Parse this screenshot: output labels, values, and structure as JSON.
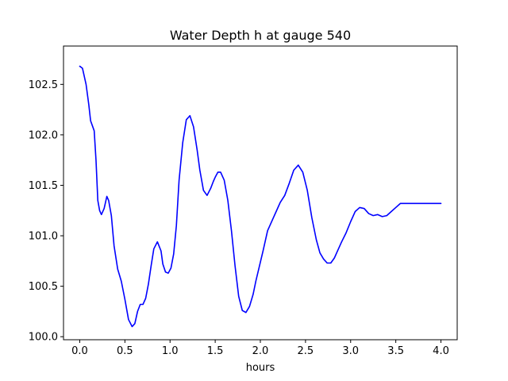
{
  "chart_data": {
    "type": "line",
    "title": "Water Depth h at gauge 540",
    "xlabel": "hours",
    "ylabel": "",
    "xlim": [
      -0.18,
      4.18
    ],
    "ylim": [
      99.97,
      102.88
    ],
    "xticks": [
      0.0,
      0.5,
      1.0,
      1.5,
      2.0,
      2.5,
      3.0,
      3.5,
      4.0
    ],
    "xtick_labels": [
      "0.0",
      "0.5",
      "1.0",
      "1.5",
      "2.0",
      "2.5",
      "3.0",
      "3.5",
      "4.0"
    ],
    "yticks": [
      100.0,
      100.5,
      101.0,
      101.5,
      102.0,
      102.5
    ],
    "ytick_labels": [
      "100.0",
      "100.5",
      "101.0",
      "101.5",
      "102.0",
      "102.5"
    ],
    "grid": false,
    "line_color": "#0000ff",
    "series": [
      {
        "name": "",
        "x": [
          0.0,
          0.03,
          0.07,
          0.1,
          0.12,
          0.14,
          0.16,
          0.18,
          0.2,
          0.22,
          0.24,
          0.27,
          0.3,
          0.32,
          0.35,
          0.38,
          0.42,
          0.46,
          0.5,
          0.54,
          0.58,
          0.61,
          0.64,
          0.67,
          0.7,
          0.73,
          0.76,
          0.79,
          0.82,
          0.86,
          0.9,
          0.92,
          0.95,
          0.98,
          1.01,
          1.04,
          1.07,
          1.1,
          1.14,
          1.18,
          1.22,
          1.26,
          1.3,
          1.33,
          1.37,
          1.41,
          1.45,
          1.48,
          1.5,
          1.53,
          1.56,
          1.6,
          1.64,
          1.68,
          1.72,
          1.76,
          1.8,
          1.84,
          1.88,
          1.92,
          1.95,
          1.99,
          2.03,
          2.08,
          2.13,
          2.18,
          2.22,
          2.27,
          2.32,
          2.37,
          2.42,
          2.47,
          2.52,
          2.57,
          2.62,
          2.66,
          2.7,
          2.74,
          2.78,
          2.82,
          2.86,
          2.9,
          2.95,
          3.0,
          3.05,
          3.1,
          3.15,
          3.2,
          3.25,
          3.3,
          3.35,
          3.4,
          3.45,
          3.5,
          3.55,
          3.6,
          3.65,
          3.7,
          3.75,
          3.8,
          3.85,
          3.9,
          3.95,
          4.0
        ],
        "values": [
          102.68,
          102.66,
          102.5,
          102.3,
          102.14,
          102.09,
          102.04,
          101.75,
          101.35,
          101.25,
          101.21,
          101.27,
          101.39,
          101.35,
          101.2,
          100.9,
          100.67,
          100.55,
          100.37,
          100.17,
          100.1,
          100.13,
          100.25,
          100.32,
          100.32,
          100.38,
          100.52,
          100.7,
          100.87,
          100.94,
          100.85,
          100.72,
          100.64,
          100.63,
          100.68,
          100.82,
          101.1,
          101.55,
          101.92,
          102.15,
          102.19,
          102.08,
          101.85,
          101.65,
          101.45,
          101.4,
          101.47,
          101.54,
          101.58,
          101.63,
          101.63,
          101.55,
          101.35,
          101.05,
          100.7,
          100.4,
          100.26,
          100.24,
          100.3,
          100.42,
          100.55,
          100.7,
          100.85,
          101.05,
          101.15,
          101.25,
          101.33,
          101.4,
          101.52,
          101.65,
          101.7,
          101.63,
          101.45,
          101.18,
          100.96,
          100.83,
          100.77,
          100.73,
          100.73,
          100.78,
          100.86,
          100.94,
          101.03,
          101.14,
          101.24,
          101.28,
          101.27,
          101.22,
          101.2,
          101.21,
          101.19,
          101.2,
          101.24,
          101.28,
          101.32,
          101.32,
          101.32,
          101.32,
          101.32,
          101.32,
          101.32,
          101.32,
          101.32,
          101.32
        ]
      }
    ]
  }
}
